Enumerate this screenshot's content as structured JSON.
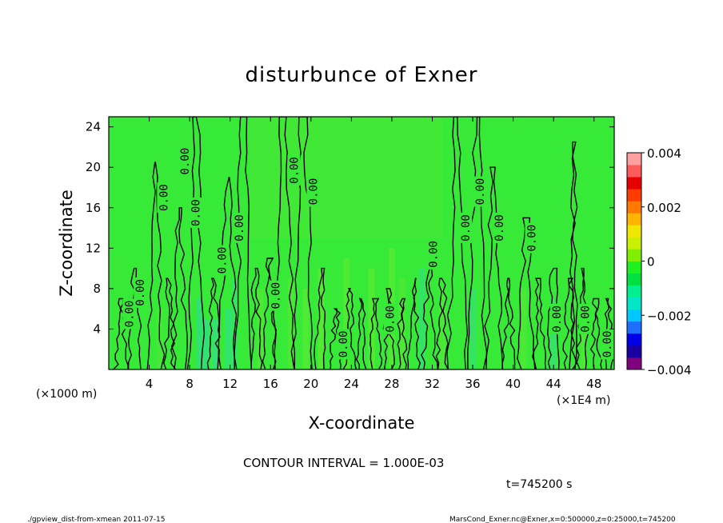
{
  "chart_data": {
    "type": "heatmap",
    "title": "disturbunce of Exner",
    "xlabel": "X-coordinate",
    "ylabel": "Z-coordinate",
    "x_unit_left": "(×1000 m)",
    "x_unit_right": "(×1E4 m)",
    "xlim": [
      0,
      50
    ],
    "ylim": [
      0,
      25
    ],
    "x_ticks": [
      "4",
      "8",
      "12",
      "16",
      "20",
      "24",
      "28",
      "32",
      "36",
      "40",
      "44",
      "48"
    ],
    "x_tick_values": [
      4,
      8,
      12,
      16,
      20,
      24,
      28,
      32,
      36,
      40,
      44,
      48
    ],
    "y_ticks": [
      "4",
      "8",
      "12",
      "16",
      "20",
      "24"
    ],
    "y_tick_values": [
      4,
      8,
      12,
      16,
      20,
      24
    ],
    "colorbar": {
      "ticks": [
        "0.004",
        "0.002",
        "0",
        "−0.002",
        "−0.004"
      ],
      "tick_values": [
        0.004,
        0.002,
        0,
        -0.002,
        -0.004
      ],
      "range": [
        -0.004,
        0.004
      ],
      "colors": [
        "#800080",
        "#1a00a0",
        "#0000e6",
        "#1e6eff",
        "#00c8ff",
        "#00e6c8",
        "#00f090",
        "#00e040",
        "#20f020",
        "#80f000",
        "#c8f000",
        "#f0e600",
        "#ffb400",
        "#ff7800",
        "#ff3c00",
        "#e60000",
        "#ff5a5a",
        "#ffa0a0"
      ]
    },
    "contour_interval_text": "CONTOUR INTERVAL = 1.000E-03",
    "contour_labels": [
      {
        "text": "0.00",
        "x": 2.0,
        "y": 5.5
      },
      {
        "text": "0.00",
        "x": 3.1,
        "y": 7.6
      },
      {
        "text": "0.00",
        "x": 5.4,
        "y": 17.0
      },
      {
        "text": "0.00",
        "x": 7.5,
        "y": 20.6
      },
      {
        "text": "0.00",
        "x": 8.6,
        "y": 15.5
      },
      {
        "text": "0.00",
        "x": 11.2,
        "y": 10.8
      },
      {
        "text": "0.00",
        "x": 12.9,
        "y": 14.0
      },
      {
        "text": "0.00",
        "x": 16.5,
        "y": 7.3
      },
      {
        "text": "0.00",
        "x": 18.3,
        "y": 19.7
      },
      {
        "text": "0.00",
        "x": 20.2,
        "y": 17.6
      },
      {
        "text": "0.00",
        "x": 23.2,
        "y": 2.5
      },
      {
        "text": "0.00",
        "x": 27.8,
        "y": 5.0
      },
      {
        "text": "0.00",
        "x": 32.1,
        "y": 11.4
      },
      {
        "text": "0.00",
        "x": 35.3,
        "y": 14.0
      },
      {
        "text": "0.00",
        "x": 36.7,
        "y": 17.6
      },
      {
        "text": "0.00",
        "x": 38.6,
        "y": 14.0
      },
      {
        "text": "0.00",
        "x": 41.8,
        "y": 13.0
      },
      {
        "text": "0.00",
        "x": 44.3,
        "y": 5.0
      },
      {
        "text": "0.00",
        "x": 47.1,
        "y": 5.0
      },
      {
        "text": "0.00",
        "x": 49.3,
        "y": 2.5
      }
    ]
  },
  "footer": {
    "time": "t=745200 s",
    "left": "./gpview_dist-from-xmean  2011-07-15",
    "right": "MarsCond_Exner.nc@Exner,x=0:500000,z=0:25000,t=745200"
  }
}
